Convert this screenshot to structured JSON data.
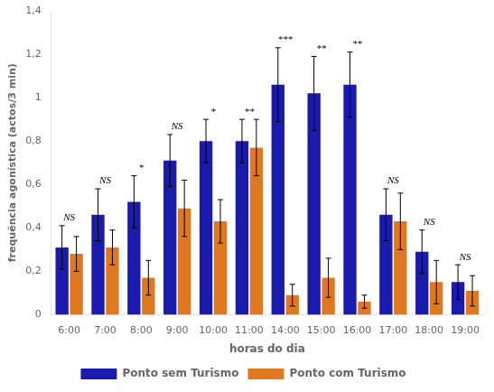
{
  "chart_data": {
    "type": "bar",
    "categories": [
      "6:00",
      "7:00",
      "8:00",
      "9:00",
      "10:00",
      "11:00",
      "14:00",
      "15:00",
      "16:00",
      "17:00",
      "18:00",
      "19:00"
    ],
    "series": [
      {
        "name": "Ponto sem Turismo",
        "color": "#1a1aad",
        "values": [
          0.31,
          0.46,
          0.52,
          0.71,
          0.8,
          0.8,
          1.06,
          1.02,
          1.06,
          0.46,
          0.29,
          0.15
        ],
        "errors": [
          0.1,
          0.12,
          0.12,
          0.12,
          0.1,
          0.1,
          0.17,
          0.17,
          0.15,
          0.12,
          0.1,
          0.08
        ]
      },
      {
        "name": "Ponto com Turismo",
        "color": "#e07820",
        "values": [
          0.28,
          0.31,
          0.17,
          0.49,
          0.43,
          0.77,
          0.09,
          0.17,
          0.06,
          0.43,
          0.15,
          0.11
        ],
        "errors": [
          0.08,
          0.08,
          0.08,
          0.13,
          0.1,
          0.13,
          0.05,
          0.09,
          0.03,
          0.13,
          0.1,
          0.07
        ]
      }
    ],
    "annotations": [
      {
        "x": "6:00",
        "text": "NS"
      },
      {
        "x": "7:00",
        "text": "NS"
      },
      {
        "x": "8:00",
        "text": "*"
      },
      {
        "x": "9:00",
        "text": "NS"
      },
      {
        "x": "10:00",
        "text": "*"
      },
      {
        "x": "11:00",
        "text": "**"
      },
      {
        "x": "14:00",
        "text": "***"
      },
      {
        "x": "15:00",
        "text": "**"
      },
      {
        "x": "16:00",
        "text": "**"
      },
      {
        "x": "17:00",
        "text": "NS"
      },
      {
        "x": "18:00",
        "text": "NS"
      },
      {
        "x": "19:00",
        "text": "NS"
      }
    ],
    "xlabel": "horas do dia",
    "ylabel": "frequência agonística (actos/3 min)",
    "ylim": [
      0,
      1.4
    ],
    "yticks": [
      0,
      {
        "value": 0.2,
        "label": "0,2"
      },
      {
        "value": 0.4,
        "label": "0,4"
      },
      {
        "value": 0.6,
        "label": "0,6"
      },
      {
        "value": 0.8,
        "label": "0,8"
      },
      1,
      {
        "value": 1.2,
        "label": "1,2"
      },
      {
        "value": 1.4,
        "label": "1,4"
      }
    ],
    "grid": false,
    "legend": "bottom"
  }
}
